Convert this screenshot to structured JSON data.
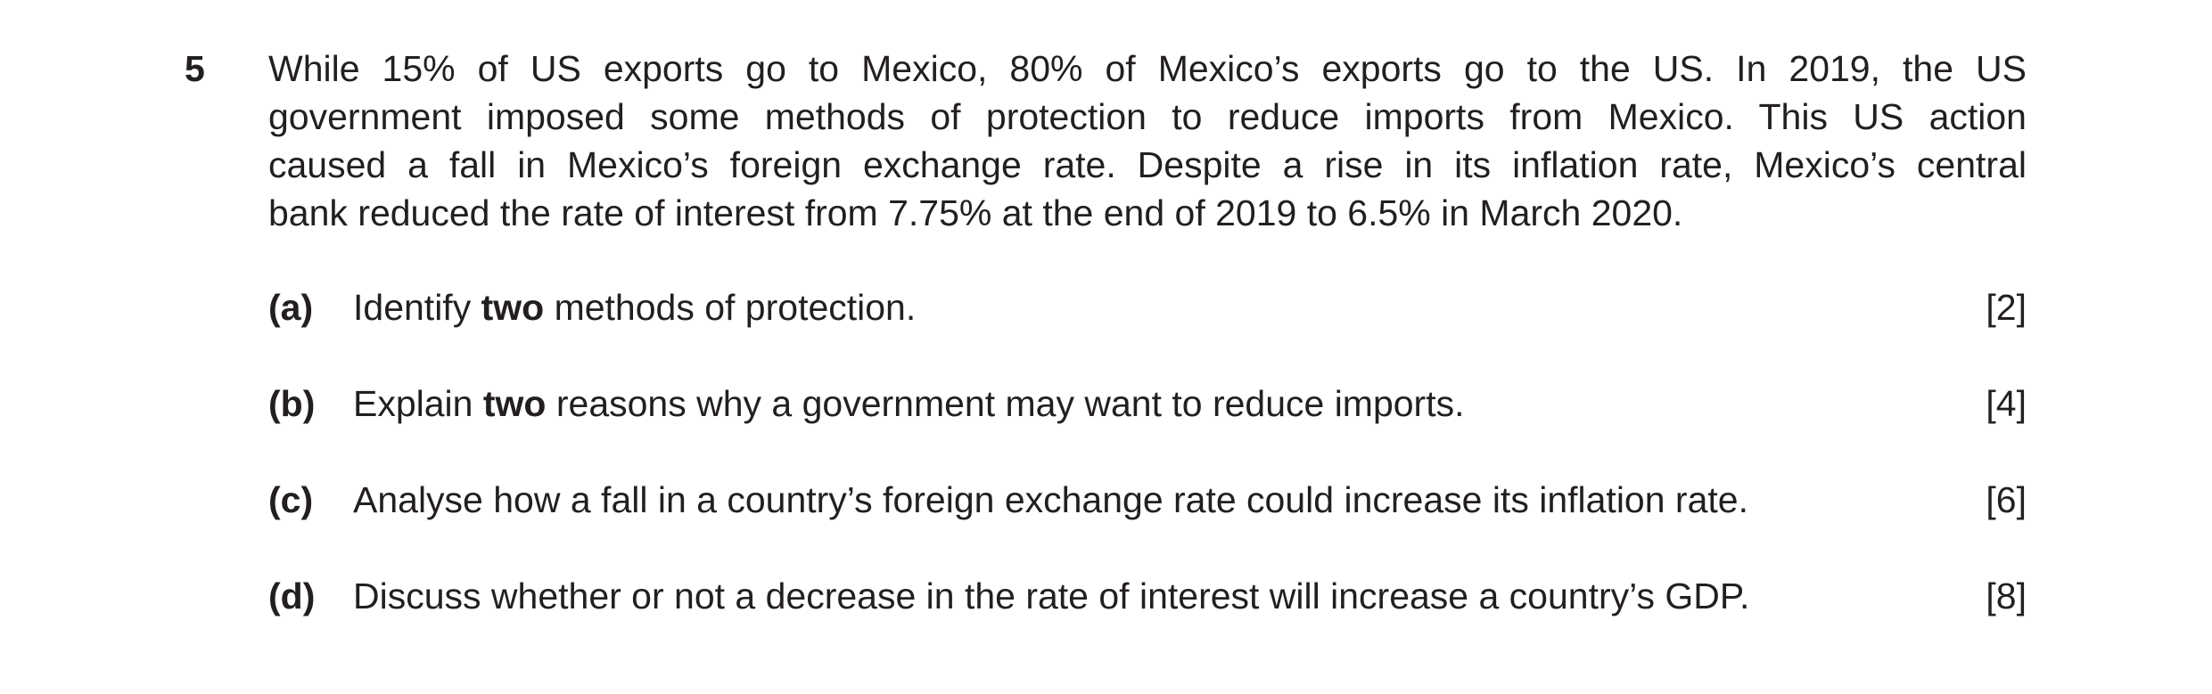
{
  "question": {
    "number": "5",
    "stem_lines": [
      "While 15% of US exports go to Mexico, 80% of Mexico’s exports go to the US. In 2019, the US",
      "government imposed some methods of protection to reduce imports from Mexico. This US action",
      "caused a fall in Mexico’s foreign exchange rate. Despite a rise in its inflation rate, Mexico’s central",
      "bank reduced the rate of interest from 7.75% at the end of 2019 to 6.5% in March 2020."
    ],
    "parts": [
      {
        "label": "(a)",
        "text": [
          "Identify ",
          "two",
          " methods of protection."
        ],
        "marks": "[2]"
      },
      {
        "label": "(b)",
        "text": [
          "Explain ",
          "two",
          " reasons why a government may want to reduce imports."
        ],
        "marks": "[4]"
      },
      {
        "label": "(c)",
        "text": [
          "Analyse how a fall in a country’s foreign exchange rate could increase its inflation rate."
        ],
        "marks": "[6]"
      },
      {
        "label": "(d)",
        "text": [
          "Discuss whether or not a decrease in the rate of interest will increase a country’s GDP."
        ],
        "marks": "[8]"
      }
    ]
  }
}
